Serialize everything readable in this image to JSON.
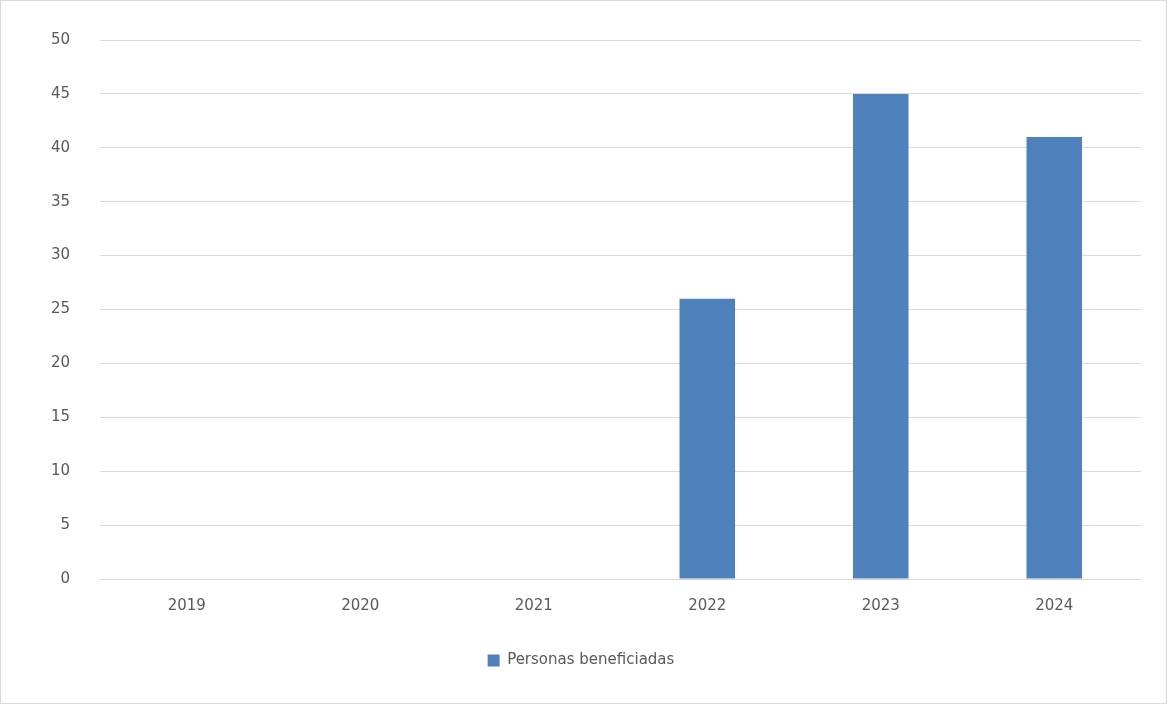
{
  "chart_data": {
    "type": "bar",
    "categories": [
      "2019",
      "2020",
      "2021",
      "2022",
      "2023",
      "2024"
    ],
    "series": [
      {
        "name": "Personas beneficiadas",
        "color": "#4f81bd",
        "values": [
          0,
          0,
          0,
          26,
          45,
          41
        ]
      }
    ],
    "ylim": [
      0,
      50
    ],
    "yticks": [
      0,
      5,
      10,
      15,
      20,
      25,
      30,
      35,
      40,
      45,
      50
    ],
    "grid": "y",
    "legend": "bottom"
  }
}
